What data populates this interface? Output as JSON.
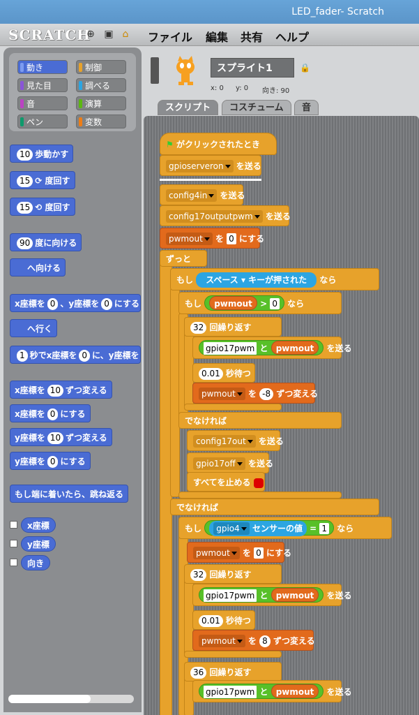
{
  "window": {
    "title": "LED_fader- Scratch"
  },
  "menubar": {
    "logo": "SCRATCH",
    "items": [
      "ファイル",
      "編集",
      "共有",
      "ヘルプ"
    ]
  },
  "categories": [
    {
      "label": "動き",
      "color": "#4a6cd4"
    },
    {
      "label": "制御",
      "color": "#e7a22b"
    },
    {
      "label": "見た目",
      "color": "#8a55d7"
    },
    {
      "label": "調べる",
      "color": "#2ca5e2"
    },
    {
      "label": "音",
      "color": "#bb42c3"
    },
    {
      "label": "演算",
      "color": "#5cb712"
    },
    {
      "label": "ペン",
      "color": "#0e9a6c"
    },
    {
      "label": "変数",
      "color": "#ee7d16"
    }
  ],
  "palette": {
    "move": {
      "n": "10",
      "t": "歩動かす"
    },
    "turn_right": {
      "n": "15",
      "t": "度回す"
    },
    "turn_left": {
      "n": "15",
      "t": "度回す"
    },
    "point_dir": {
      "n": "90",
      "t": "度に向ける"
    },
    "point_to": {
      "t": "へ向ける"
    },
    "goto_xy": {
      "a": "x座標を",
      "x": "0",
      "b": "、y座標を",
      "y": "0",
      "c": "にする"
    },
    "goto": {
      "t": "へ行く"
    },
    "glide": {
      "s": "1",
      "a": "秒でx座標を",
      "x": "0",
      "b": "に、y座標を"
    },
    "change_x": {
      "a": "x座標を",
      "n": "10",
      "b": "ずつ変える"
    },
    "set_x": {
      "a": "x座標を",
      "n": "0",
      "b": "にする"
    },
    "change_y": {
      "a": "y座標を",
      "n": "10",
      "b": "ずつ変える"
    },
    "set_y": {
      "a": "y座標を",
      "n": "0",
      "b": "にする"
    },
    "bounce": "もし端に着いたら、跳ね返る",
    "reporters": [
      "x座標",
      "y座標",
      "向き"
    ]
  },
  "sprite": {
    "name": "スプライト1",
    "x": "x: 0",
    "y": "y: 0",
    "dir": "向き: 90"
  },
  "tabs": [
    "スクリプト",
    "コスチューム",
    "音"
  ],
  "script": {
    "hat": "がクリックされたとき",
    "b1": {
      "d": "gpioserveron",
      "t": "を送る"
    },
    "b2": {
      "d": "config4in",
      "t": "を送る"
    },
    "b3": {
      "d": "config17outputpwm",
      "t": "を送る"
    },
    "b4": {
      "d": "pwmout",
      "a": "を",
      "n": "0",
      "b": "にする"
    },
    "forever": "ずっと",
    "if1": {
      "if": "もし",
      "key": "スペース",
      "t": "キーが押された",
      "then": "なら"
    },
    "if2": {
      "if": "もし",
      "v": "pwmout",
      "op": ">",
      "n": "0",
      "then": "なら"
    },
    "rep1": {
      "n": "32",
      "t": "回繰り返す"
    },
    "send1": {
      "s": "gpio17pwm",
      "j": "と",
      "v": "pwmout",
      "t": "を送る"
    },
    "wait1": {
      "n": "0.01",
      "t": "秒待つ"
    },
    "chg1": {
      "d": "pwmout",
      "a": "を",
      "n": "-8",
      "b": "ずつ変える"
    },
    "else1": "でなければ",
    "b5": {
      "d": "config17out",
      "t": "を送る"
    },
    "b6": {
      "d": "gpio17off",
      "t": "を送る"
    },
    "stop": "すべてを止める",
    "else2": "でなければ",
    "if3": {
      "if": "もし",
      "d": "gpio4",
      "t": "センサーの値",
      "op": "=",
      "n": "1",
      "then": "なら"
    },
    "b7": {
      "d": "pwmout",
      "a": "を",
      "n": "0",
      "b": "にする"
    },
    "rep2": {
      "n": "32",
      "t": "回繰り返す"
    },
    "send2": {
      "s": "gpio17pwm",
      "j": "と",
      "v": "pwmout",
      "t": "を送る"
    },
    "wait2": {
      "n": "0.01",
      "t": "秒待つ"
    },
    "chg2": {
      "d": "pwmout",
      "a": "を",
      "n": "8",
      "b": "ずつ変える"
    },
    "rep3": {
      "n": "36",
      "t": "回繰り返す"
    },
    "send3": {
      "s": "gpio17pwm",
      "j": "と",
      "v": "pwmout",
      "t": "を送る"
    }
  }
}
